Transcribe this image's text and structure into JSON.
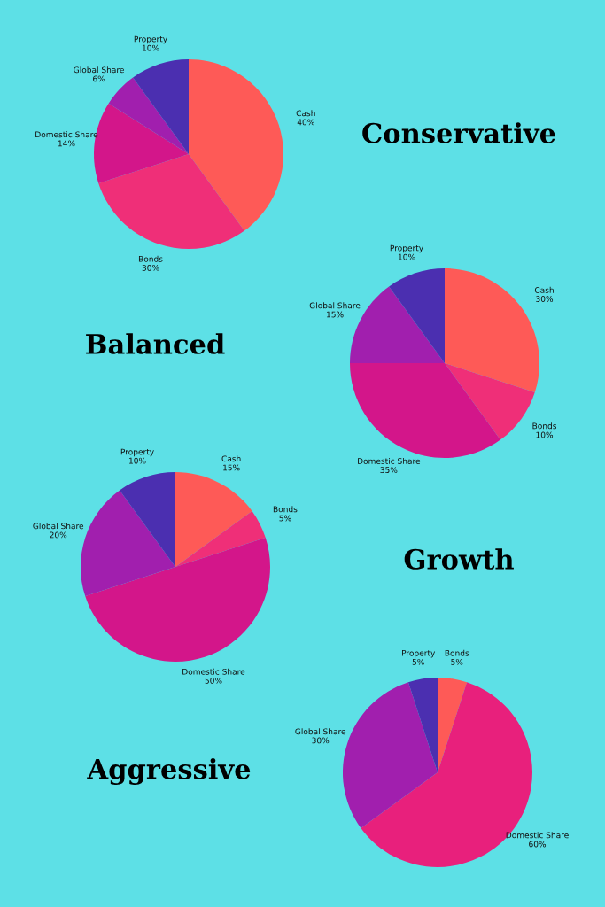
{
  "chart_data": [
    {
      "type": "pie",
      "title": "Conservative",
      "categories": [
        "Cash",
        "Bonds",
        "Domestic Share",
        "Global Share",
        "Property"
      ],
      "values": [
        40,
        30,
        14,
        6,
        10
      ],
      "value_labels": [
        "40%",
        "30%",
        "14%",
        "6%",
        "10%"
      ],
      "colors": [
        "#fe5a57",
        "#ef2f78",
        "#d3168a",
        "#a11fae",
        "#4b2fb0"
      ]
    },
    {
      "type": "pie",
      "title": "Balanced",
      "categories": [
        "Cash",
        "Bonds",
        "Domestic Share",
        "Global Share",
        "Property"
      ],
      "values": [
        30,
        10,
        35,
        15,
        10
      ],
      "value_labels": [
        "30%",
        "10%",
        "35%",
        "15%",
        "10%"
      ],
      "colors": [
        "#fe5a57",
        "#ef2f78",
        "#d3168a",
        "#a11fae",
        "#4b2fb0"
      ]
    },
    {
      "type": "pie",
      "title": "Growth",
      "categories": [
        "Cash",
        "Bonds",
        "Domestic Share",
        "Global Share",
        "Property"
      ],
      "values": [
        15,
        5,
        50,
        20,
        10
      ],
      "value_labels": [
        "15%",
        "5%",
        "50%",
        "20%",
        "10%"
      ],
      "colors": [
        "#fe5a57",
        "#ef2f78",
        "#d3168a",
        "#a11fae",
        "#4b2fb0"
      ]
    },
    {
      "type": "pie",
      "title": "Aggressive",
      "categories": [
        "Bonds",
        "Domestic Share",
        "Global Share",
        "Property"
      ],
      "values": [
        5,
        60,
        30,
        5
      ],
      "value_labels": [
        "5%",
        "60%",
        "30%",
        "5%"
      ],
      "colors": [
        "#fe5a57",
        "#e8207c",
        "#a11fae",
        "#4b2fb0"
      ]
    }
  ]
}
